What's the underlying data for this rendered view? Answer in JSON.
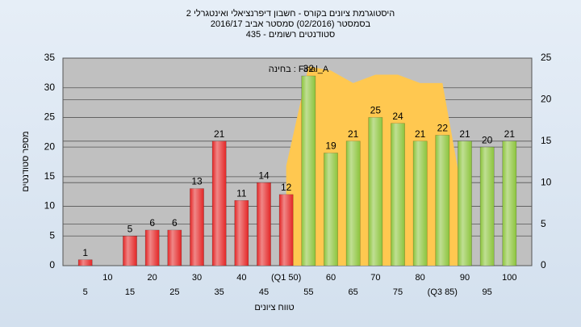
{
  "chart_data": {
    "type": "bar",
    "title": "היסטוגרמת ציונים בקורס - חשבון דיפרנציאלי ואינטגרלי 2",
    "subtitle": "בסמסטר  (02/2016)  סמסטר אביב 2016/17",
    "subtitle2": "סטודנטים רשומים - 435",
    "annotation": "בחינה : Final_A",
    "x_label": "טווח ציונים",
    "y_label": "מספר סטודנטים",
    "categories": [
      "5",
      "10",
      "15",
      "20",
      "25",
      "30",
      "35",
      "40",
      "45",
      "(Q1 50)",
      "55",
      "60",
      "65",
      "70",
      "75",
      "80",
      "(Q3 85)",
      "90",
      "95",
      "100"
    ],
    "values": [
      1,
      0,
      5,
      6,
      6,
      13,
      21,
      11,
      14,
      12,
      32,
      19,
      21,
      25,
      24,
      21,
      22,
      21,
      20,
      21
    ],
    "bar_colors": [
      "#e32626",
      "#e32626",
      "#e32626",
      "#e32626",
      "#e32626",
      "#e32626",
      "#e32626",
      "#e32626",
      "#e32626",
      "#e32626",
      "#8cc43c",
      "#8cc43c",
      "#8cc43c",
      "#8cc43c",
      "#8cc43c",
      "#8cc43c",
      "#8cc43c",
      "#8cc43c",
      "#8cc43c",
      "#8cc43c"
    ],
    "series": [
      {
        "type": "area",
        "axis": "y2",
        "color": "#ffc850",
        "values": [
          null,
          null,
          null,
          null,
          null,
          null,
          null,
          null,
          null,
          12,
          24,
          23.5,
          22,
          23,
          23,
          22,
          22,
          7,
          null,
          null
        ]
      }
    ],
    "ylim": [
      0,
      35
    ],
    "yticks": [
      0,
      5,
      10,
      15,
      20,
      25,
      30,
      35
    ],
    "y2lim": [
      0,
      25
    ],
    "y2ticks": [
      0,
      5,
      10,
      15,
      20,
      25
    ],
    "grid": true
  }
}
